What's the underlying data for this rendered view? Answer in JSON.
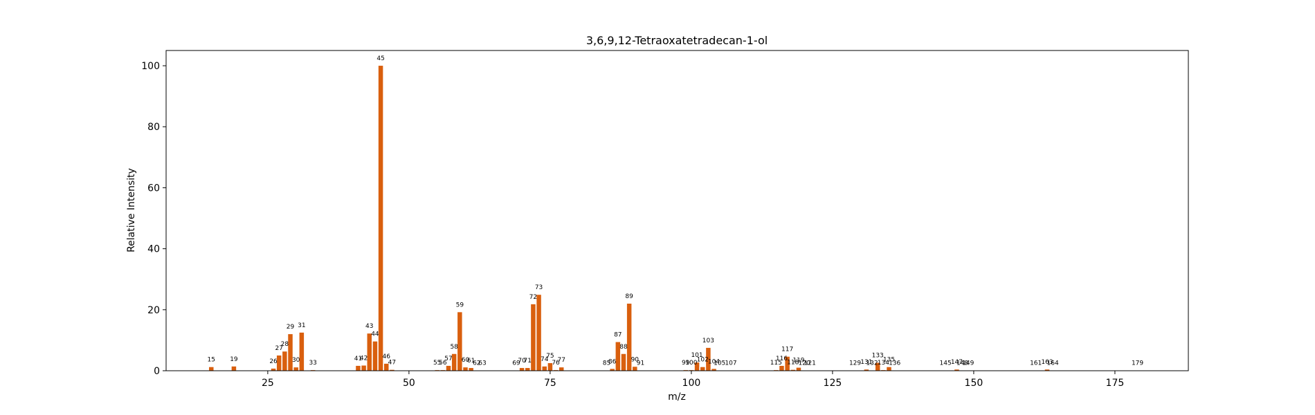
{
  "chart_data": {
    "type": "bar",
    "title": "3,6,9,12-Tetraoxatetradecan-1-ol",
    "xlabel": "m/z",
    "ylabel": "Relative Intensity",
    "xlim": [
      7,
      188
    ],
    "ylim": [
      0,
      105
    ],
    "xticks": [
      25,
      50,
      75,
      100,
      125,
      150,
      175
    ],
    "yticks": [
      0,
      20,
      40,
      60,
      80,
      100
    ],
    "grid": false,
    "bar_color": "#d95f0e",
    "peaks": [
      {
        "mz": 15,
        "intensity": 1.2
      },
      {
        "mz": 19,
        "intensity": 1.4
      },
      {
        "mz": 26,
        "intensity": 0.7
      },
      {
        "mz": 27,
        "intensity": 5.0
      },
      {
        "mz": 28,
        "intensity": 6.3
      },
      {
        "mz": 29,
        "intensity": 12.0
      },
      {
        "mz": 30,
        "intensity": 1.1
      },
      {
        "mz": 31,
        "intensity": 12.5
      },
      {
        "mz": 33,
        "intensity": 0.2
      },
      {
        "mz": 41,
        "intensity": 1.6
      },
      {
        "mz": 42,
        "intensity": 1.7
      },
      {
        "mz": 43,
        "intensity": 12.2
      },
      {
        "mz": 44,
        "intensity": 9.6
      },
      {
        "mz": 45,
        "intensity": 100
      },
      {
        "mz": 46,
        "intensity": 2.3
      },
      {
        "mz": 47,
        "intensity": 0.3
      },
      {
        "mz": 55,
        "intensity": 0.2
      },
      {
        "mz": 56,
        "intensity": 0.2
      },
      {
        "mz": 57,
        "intensity": 1.6
      },
      {
        "mz": 58,
        "intensity": 5.5
      },
      {
        "mz": 59,
        "intensity": 19.2
      },
      {
        "mz": 60,
        "intensity": 1.1
      },
      {
        "mz": 61,
        "intensity": 0.9
      },
      {
        "mz": 62,
        "intensity": 0.1
      },
      {
        "mz": 63,
        "intensity": 0.1
      },
      {
        "mz": 69,
        "intensity": 0.1
      },
      {
        "mz": 70,
        "intensity": 0.9
      },
      {
        "mz": 71,
        "intensity": 0.9
      },
      {
        "mz": 72,
        "intensity": 21.8
      },
      {
        "mz": 73,
        "intensity": 24.9
      },
      {
        "mz": 74,
        "intensity": 1.4
      },
      {
        "mz": 75,
        "intensity": 2.5
      },
      {
        "mz": 76,
        "intensity": 0.2
      },
      {
        "mz": 77,
        "intensity": 1.1
      },
      {
        "mz": 85,
        "intensity": 0.1
      },
      {
        "mz": 86,
        "intensity": 0.6
      },
      {
        "mz": 87,
        "intensity": 9.4
      },
      {
        "mz": 88,
        "intensity": 5.5
      },
      {
        "mz": 89,
        "intensity": 22.0
      },
      {
        "mz": 90,
        "intensity": 1.3
      },
      {
        "mz": 91,
        "intensity": 0.1
      },
      {
        "mz": 99,
        "intensity": 0.2
      },
      {
        "mz": 100,
        "intensity": 0.2
      },
      {
        "mz": 101,
        "intensity": 2.7
      },
      {
        "mz": 102,
        "intensity": 1.2
      },
      {
        "mz": 103,
        "intensity": 7.5
      },
      {
        "mz": 104,
        "intensity": 0.6
      },
      {
        "mz": 105,
        "intensity": 0.1
      },
      {
        "mz": 107,
        "intensity": 0.1
      },
      {
        "mz": 115,
        "intensity": 0.2
      },
      {
        "mz": 116,
        "intensity": 1.6
      },
      {
        "mz": 117,
        "intensity": 4.6
      },
      {
        "mz": 118,
        "intensity": 0.3
      },
      {
        "mz": 119,
        "intensity": 1.0
      },
      {
        "mz": 120,
        "intensity": 0.1
      },
      {
        "mz": 121,
        "intensity": 0.1
      },
      {
        "mz": 129,
        "intensity": 0.1
      },
      {
        "mz": 131,
        "intensity": 0.4
      },
      {
        "mz": 132,
        "intensity": 0.1
      },
      {
        "mz": 133,
        "intensity": 2.6
      },
      {
        "mz": 134,
        "intensity": 0.2
      },
      {
        "mz": 135,
        "intensity": 1.2
      },
      {
        "mz": 136,
        "intensity": 0.1
      },
      {
        "mz": 145,
        "intensity": 0.1
      },
      {
        "mz": 147,
        "intensity": 0.4
      },
      {
        "mz": 148,
        "intensity": 0.1
      },
      {
        "mz": 149,
        "intensity": 0.1
      },
      {
        "mz": 161,
        "intensity": 0.1
      },
      {
        "mz": 163,
        "intensity": 0.4
      },
      {
        "mz": 164,
        "intensity": 0.1
      },
      {
        "mz": 179,
        "intensity": 0.1
      }
    ]
  }
}
